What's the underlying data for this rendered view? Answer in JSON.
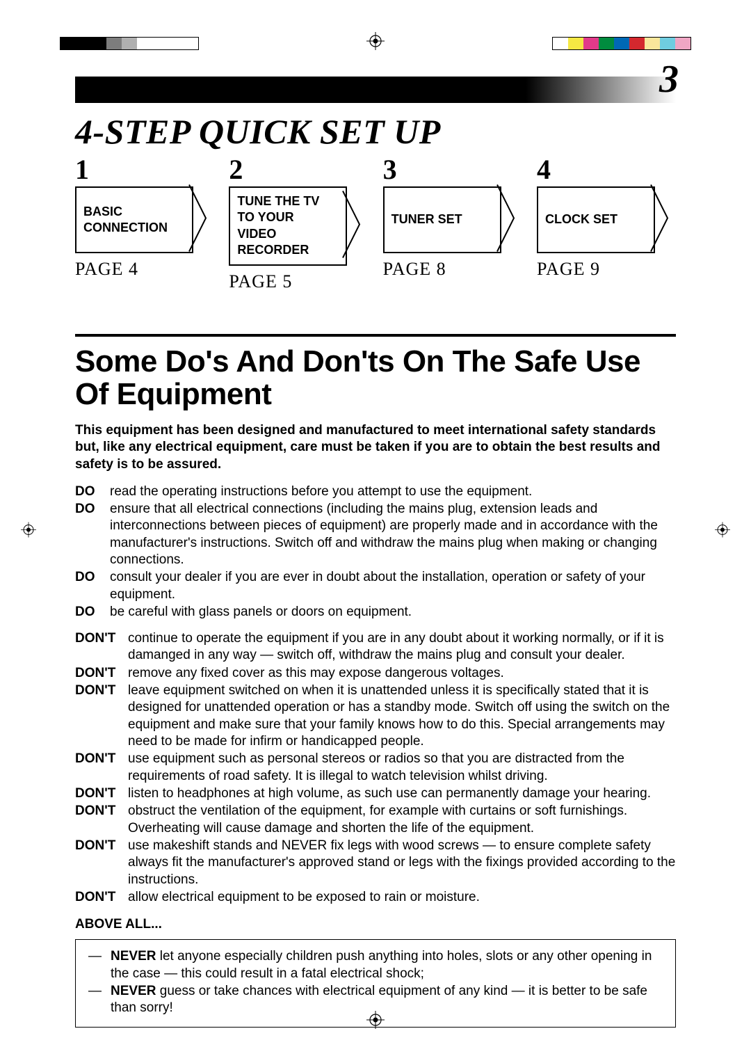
{
  "crop_marks": {
    "left_squares": [
      {
        "color": "#000000"
      },
      {
        "color": "#000000"
      },
      {
        "color": "#000000"
      },
      {
        "color": "#7d7d7d"
      },
      {
        "color": "#b0b0b0"
      },
      {
        "color": "#ffffff"
      },
      {
        "color": "#ffffff"
      },
      {
        "color": "#ffffff"
      },
      {
        "color": "#ffffff"
      }
    ],
    "right_squares": [
      {
        "color": "#ffffff"
      },
      {
        "color": "#f5e843"
      },
      {
        "color": "#e23a8a"
      },
      {
        "color": "#008b3e"
      },
      {
        "color": "#0068b5"
      },
      {
        "color": "#d4282e"
      },
      {
        "color": "#f9e79b"
      },
      {
        "color": "#6fcde0"
      },
      {
        "color": "#f0a6c4"
      }
    ],
    "left_border": "#000000",
    "right_border": "#000000"
  },
  "page_number": "3",
  "main_title": "4-STEP QUICK SET UP",
  "steps": [
    {
      "num": "1",
      "label": "BASIC CONNECTION",
      "page": "PAGE 4",
      "tall": false
    },
    {
      "num": "2",
      "label": "TUNE THE TV TO YOUR VIDEO RECORDER",
      "page": "PAGE 5",
      "tall": true
    },
    {
      "num": "3",
      "label": "TUNER SET",
      "page": "PAGE 8",
      "tall": false
    },
    {
      "num": "4",
      "label": "CLOCK SET",
      "page": "PAGE 9",
      "tall": false
    }
  ],
  "section_title": "Some Do's And Don'ts On The Safe Use Of Equipment",
  "intro": "This equipment has been designed and manufactured to meet international safety standards but, like any electrical equipment, care must be taken if you are to obtain the best results and safety is to be assured.",
  "do_label": "DO",
  "dont_label": "DON'T",
  "dos": [
    "read the operating instructions before you attempt to use the equipment.",
    "ensure that all electrical connections (including the mains plug, extension leads and interconnections between pieces of equipment) are properly made and in accordance with the manufacturer's instructions. Switch off and withdraw the mains plug when making or changing connections.",
    "consult your dealer if you are ever in doubt about the installation, operation or safety of your equipment.",
    "be careful with glass panels or doors on equipment."
  ],
  "donts": [
    "continue to operate the equipment if you are in any doubt about it working normally, or if it is damanged in any way — switch off, withdraw the mains plug and consult your dealer.",
    "remove any fixed cover as this may expose dangerous voltages.",
    "leave equipment switched on when it is unattended unless it is specifically stated that it is designed for unattended operation or has a standby mode. Switch off using the switch on the equipment and make sure that your family knows how to do this. Special arrangements may need to be made for infirm or handicapped people.",
    "use equipment such as personal stereos or radios so that you are distracted from the requirements of road safety. It is illegal to watch television whilst driving.",
    "listen to headphones at high volume, as such use can permanently damage your hearing.",
    "obstruct the ventilation of the equipment, for example with curtains or soft furnishings. Overheating will cause damage and shorten the life of the equipment.",
    "use makeshift stands and NEVER fix legs with wood screws — to ensure complete safety always fit the manufacturer's approved stand or legs with the fixings provided according to the instructions.",
    "allow electrical equipment to be exposed to rain or moisture."
  ],
  "above_all": "ABOVE ALL...",
  "never_label": "NEVER",
  "never_dash": "—",
  "nevers": [
    " let anyone especially children push anything into holes, slots or any other opening in the case — this could result in a fatal electrical shock;",
    " guess or take chances with electrical equipment of any kind — it is better to be safe than sorry!"
  ],
  "colors": {
    "text": "#000000",
    "background": "#ffffff"
  }
}
